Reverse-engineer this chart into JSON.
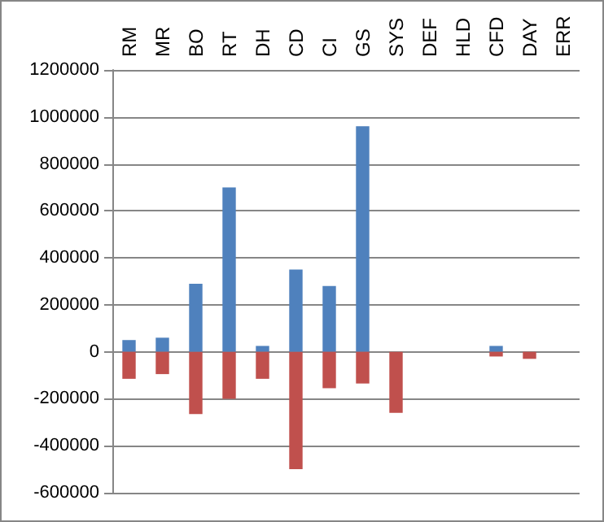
{
  "chart_data": {
    "type": "bar",
    "stacked": true,
    "categories": [
      "RM",
      "MR",
      "BO",
      "RT",
      "DH",
      "CD",
      "CI",
      "GS",
      "SYS",
      "DEF",
      "HLD",
      "CFD",
      "DAY",
      "ERR"
    ],
    "series": [
      {
        "color": "#4f81bd",
        "values": [
          50000,
          60000,
          290000,
          700000,
          25000,
          350000,
          280000,
          960000,
          null,
          null,
          null,
          25000,
          null,
          null
        ]
      },
      {
        "color": "#c0504d",
        "values": [
          -115000,
          -95000,
          -265000,
          -200000,
          -115000,
          -500000,
          -155000,
          -135000,
          -260000,
          null,
          null,
          -20000,
          -30000,
          null
        ]
      }
    ],
    "ylim": [
      -600000,
      1200000
    ],
    "yticks": [
      -600000,
      -400000,
      -200000,
      0,
      200000,
      400000,
      600000,
      800000,
      1000000,
      1200000
    ],
    "grid": "y"
  }
}
